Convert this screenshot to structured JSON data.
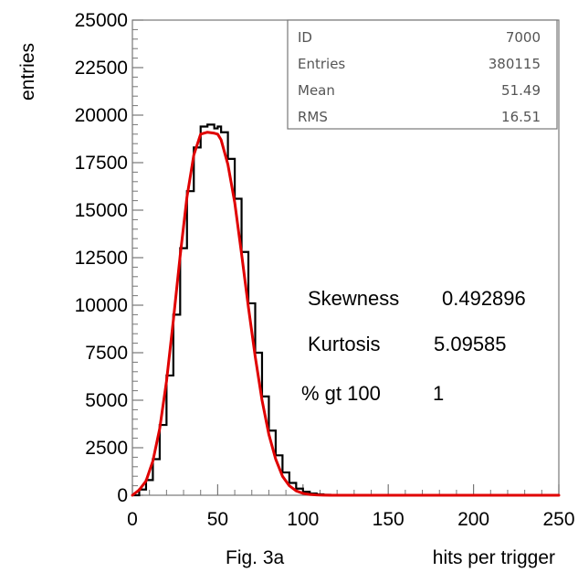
{
  "chart_data": {
    "type": "histogram",
    "title": "",
    "xlabel": "hits per trigger",
    "ylabel": "entries",
    "caption": "Fig. 3a",
    "xlim": [
      0,
      250
    ],
    "ylim": [
      0,
      25000
    ],
    "x_ticks": [
      "0",
      "50",
      "100",
      "150",
      "200",
      "250"
    ],
    "y_ticks": [
      "0",
      "2500",
      "5000",
      "7500",
      "10000",
      "12500",
      "15000",
      "17500",
      "20000",
      "22500",
      "25000"
    ],
    "grid": false,
    "legend": "none",
    "stats_box": [
      {
        "label": "ID",
        "value": "7000"
      },
      {
        "label": "Entries",
        "value": "380115"
      },
      {
        "label": "Mean",
        "value": "51.49"
      },
      {
        "label": "RMS",
        "value": "16.51"
      }
    ],
    "annotations": [
      {
        "label": "Skewness",
        "value": "0.492896"
      },
      {
        "label": "Kurtosis",
        "value": "5.09585"
      },
      {
        "label": "% gt 100",
        "value": "1"
      }
    ],
    "series": [
      {
        "kind": "histogram",
        "color": "#000000",
        "x": [
          0,
          4,
          8,
          12,
          16,
          20,
          24,
          28,
          32,
          36,
          40,
          44,
          48,
          50,
          52,
          56,
          60,
          64,
          68,
          72,
          76,
          80,
          84,
          88,
          92,
          96,
          100,
          104,
          108,
          112,
          116,
          120,
          130,
          140,
          150,
          200,
          250
        ],
        "y": [
          0,
          300,
          800,
          1900,
          3700,
          6300,
          9500,
          13000,
          16000,
          18300,
          19400,
          19500,
          19300,
          19400,
          19100,
          17700,
          15600,
          12800,
          10100,
          7500,
          5200,
          3400,
          2100,
          1200,
          650,
          350,
          180,
          90,
          50,
          25,
          12,
          6,
          2,
          0,
          0,
          0,
          0
        ]
      },
      {
        "kind": "fit",
        "color": "#e00000",
        "x": [
          0,
          4,
          8,
          12,
          16,
          20,
          24,
          28,
          32,
          36,
          40,
          44,
          48,
          50,
          52,
          56,
          60,
          64,
          68,
          72,
          76,
          80,
          84,
          88,
          92,
          96,
          100,
          104,
          108,
          112,
          116,
          120,
          130,
          140,
          150,
          200,
          250
        ],
        "y": [
          0,
          280,
          750,
          1800,
          3500,
          6000,
          9200,
          12600,
          15700,
          17900,
          19000,
          19100,
          19050,
          19000,
          18700,
          17400,
          15400,
          12700,
          9900,
          7300,
          5000,
          3200,
          1900,
          1000,
          500,
          230,
          100,
          40,
          15,
          5,
          0,
          0,
          0,
          0,
          0,
          0,
          0
        ]
      }
    ]
  }
}
